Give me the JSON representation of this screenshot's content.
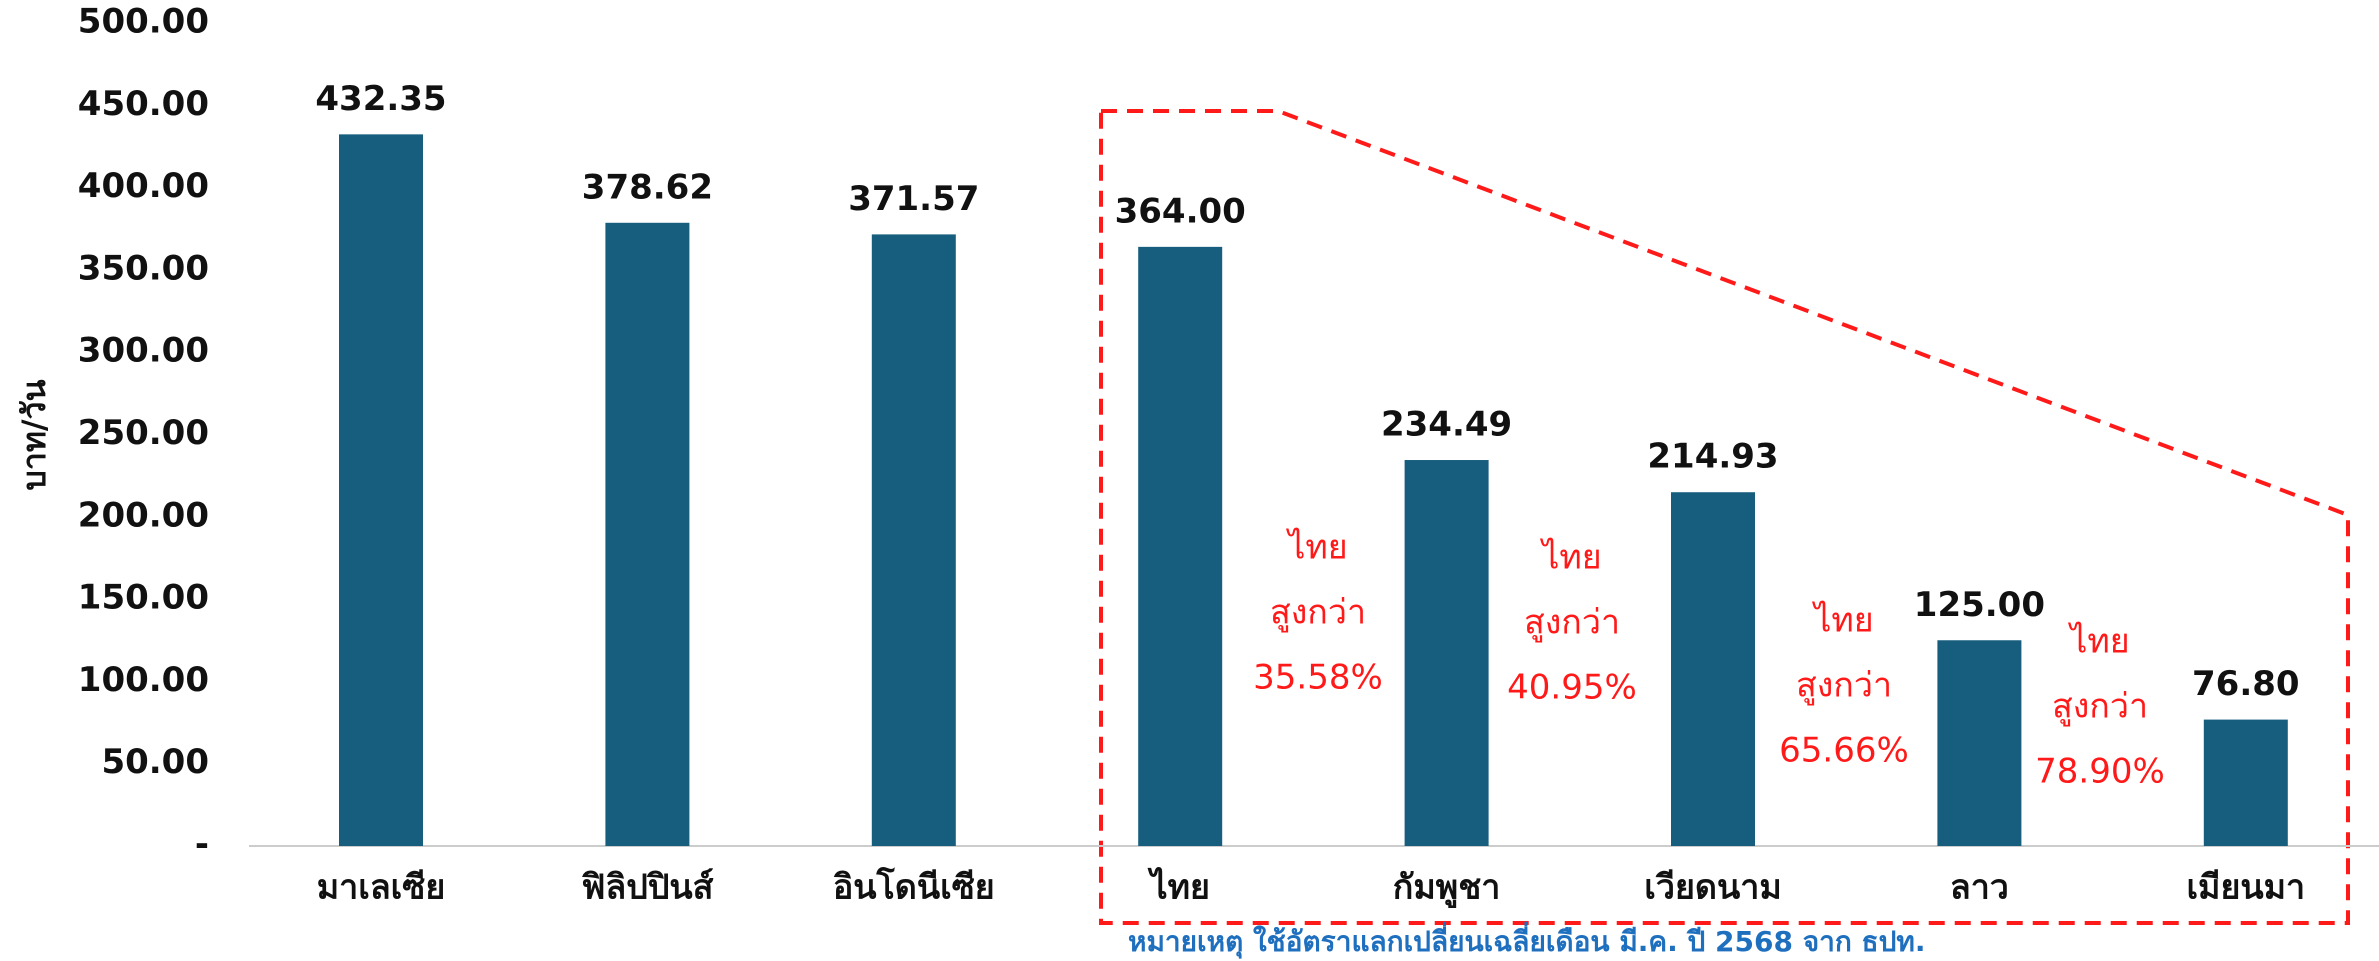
{
  "chart_data": {
    "type": "bar",
    "y_label": "บาท/วัน",
    "categories": [
      "มาเลเซีย",
      "ฟิลิปปินส์",
      "อินโดนีเซีย",
      "ไทย",
      "กัมพูชา",
      "เวียดนาม",
      "ลาว",
      "เมียนมา"
    ],
    "values": [
      432.35,
      378.62,
      371.57,
      364.0,
      234.49,
      214.93,
      125.0,
      76.8
    ],
    "value_labels": [
      "432.35",
      "378.62",
      "371.57",
      "364.00",
      "234.49",
      "214.93",
      "125.00",
      "76.80"
    ],
    "color": "#175e7e",
    "ylim": [
      0,
      500
    ],
    "yticks": [
      {
        "value": 0,
        "label": "-"
      },
      {
        "value": 50,
        "label": "50.00"
      },
      {
        "value": 100,
        "label": "100.00"
      },
      {
        "value": 150,
        "label": "150.00"
      },
      {
        "value": 200,
        "label": "200.00"
      },
      {
        "value": 250,
        "label": "250.00"
      },
      {
        "value": 300,
        "label": "300.00"
      },
      {
        "value": 350,
        "label": "350.00"
      },
      {
        "value": 400,
        "label": "400.00"
      },
      {
        "value": 450,
        "label": "450.00"
      },
      {
        "value": 500,
        "label": "500.00"
      }
    ],
    "annotations": [
      {
        "lines": [
          "ไทย",
          "สูงกว่า",
          "35.58%"
        ]
      },
      {
        "lines": [
          "ไทย",
          "สูงกว่า",
          "40.95%"
        ]
      },
      {
        "lines": [
          "ไทย",
          "สูงกว่า",
          "65.66%"
        ]
      },
      {
        "lines": [
          "ไทย",
          "สูงกว่า",
          "78.90%"
        ]
      }
    ],
    "note": "หมายเหตุ ใช้อัตราแลกเปลี่ยนเฉลี่ยเดือน มี.ค. ปี 2568 จาก ธปท."
  }
}
